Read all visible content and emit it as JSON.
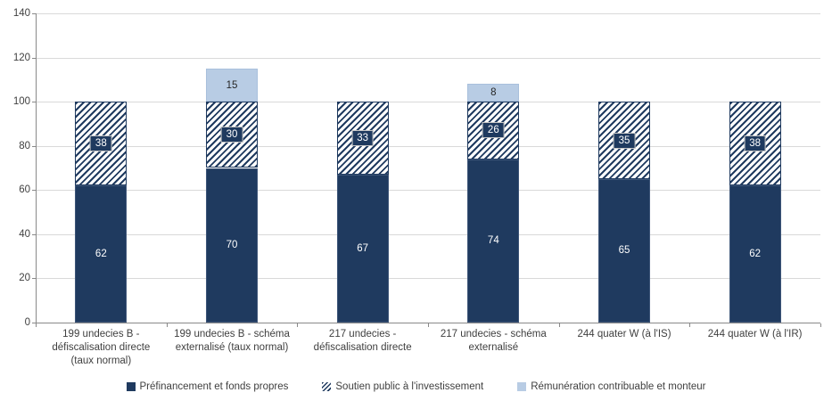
{
  "chart_data": {
    "type": "bar",
    "stacked": true,
    "title": "",
    "xlabel": "",
    "ylabel": "",
    "ylim": [
      0,
      140
    ],
    "yticks": [
      0,
      20,
      40,
      60,
      80,
      100,
      120,
      140
    ],
    "grid": true,
    "legend_position": "bottom",
    "categories": [
      "199 undecies B -\ndéfiscalisation directe\n(taux normal)",
      "199 undecies B - schéma\nexternalisé (taux normal)",
      "217 undecies -\ndéfiscalisation directe",
      "217 undecies - schéma\nexternalisé",
      "244 quater W (à l'IS)",
      "244 quater W (à l'IR)"
    ],
    "series": [
      {
        "name": "Préfinancement et fonds propres",
        "style": "solid",
        "values": [
          62,
          70,
          67,
          74,
          65,
          62
        ]
      },
      {
        "name": "Soutien public à l'investissement",
        "style": "hatch",
        "values": [
          38,
          30,
          33,
          26,
          35,
          38
        ]
      },
      {
        "name": "Rémunération contribuable et monteur",
        "style": "light",
        "values": [
          0,
          15,
          0,
          8,
          0,
          0
        ]
      }
    ],
    "colors": {
      "navy": "#1f3a5f",
      "light_blue": "#b8cce4",
      "gridline": "#d9d9d9",
      "axis": "#898989",
      "text": "#3f3f3f"
    }
  }
}
